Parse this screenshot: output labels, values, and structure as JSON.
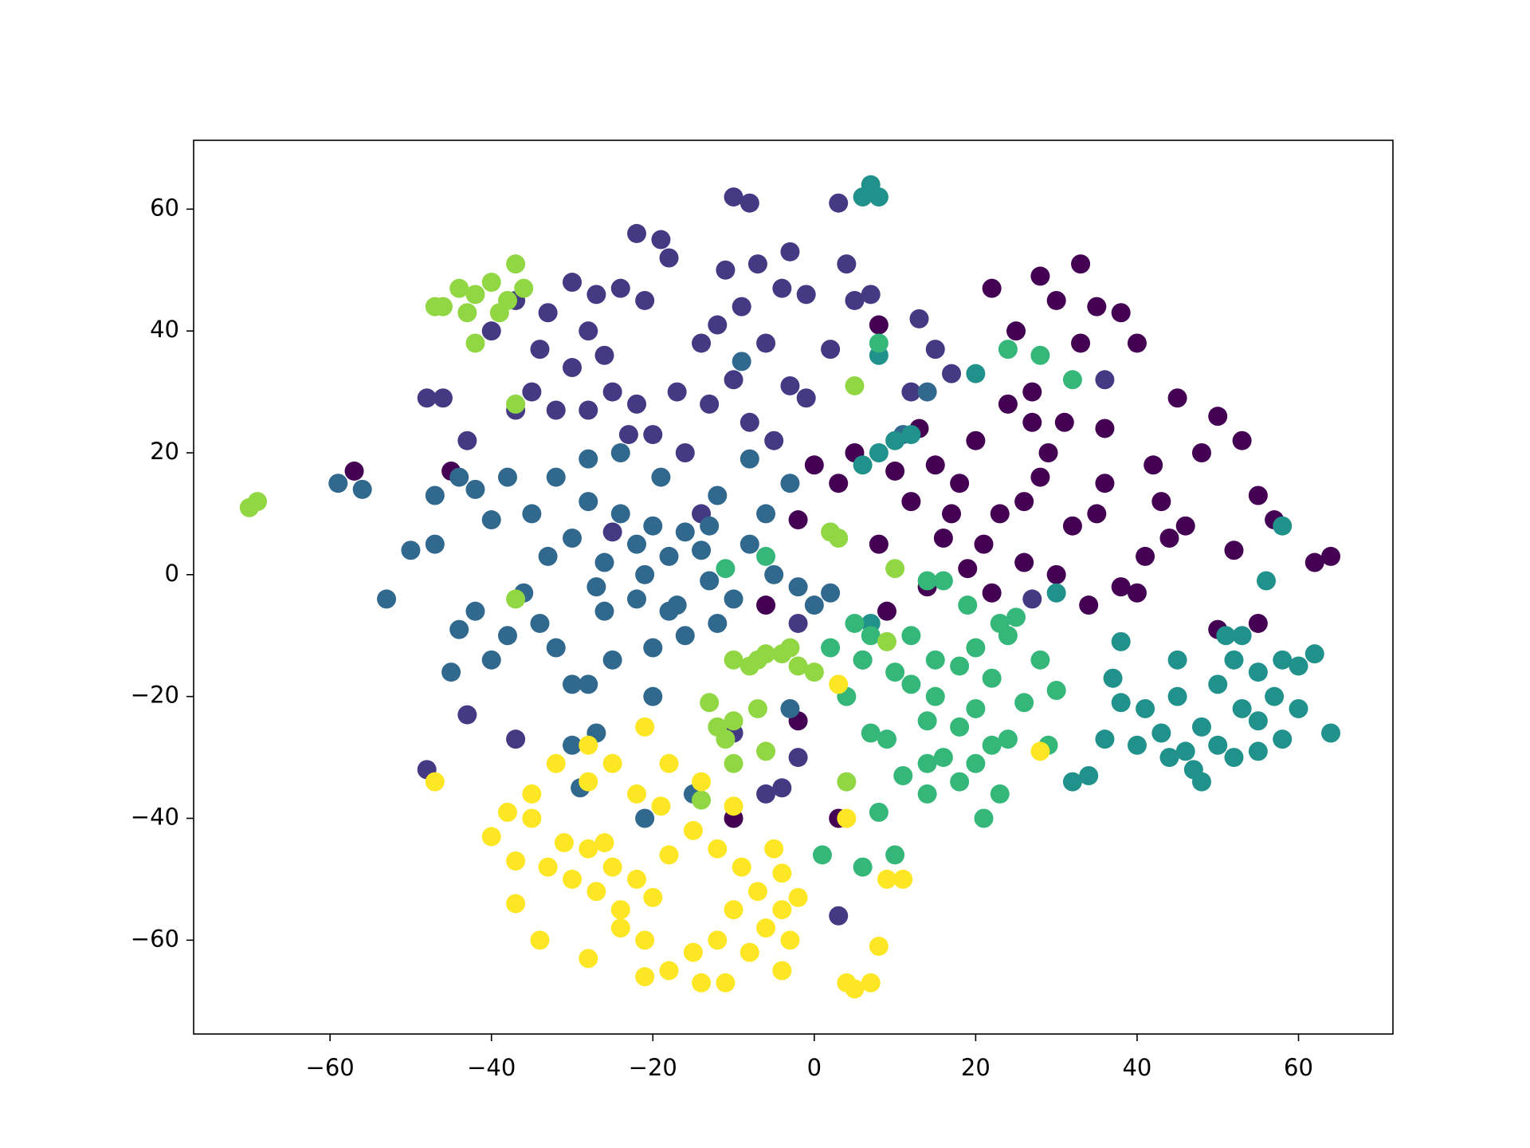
{
  "chart_data": {
    "type": "scatter",
    "xlim": [
      -76.9,
      71.7
    ],
    "ylim": [
      -75.4,
      71.3
    ],
    "xticks": [
      {
        "value": -60,
        "label": "−60"
      },
      {
        "value": -40,
        "label": "−40"
      },
      {
        "value": -20,
        "label": "−20"
      },
      0,
      20,
      40,
      60
    ],
    "yticks": [
      {
        "value": -60,
        "label": "−60"
      },
      {
        "value": -40,
        "label": "−40"
      },
      {
        "value": -20,
        "label": "−20"
      },
      0,
      20,
      40,
      60
    ],
    "series": [
      {
        "color": "#440154",
        "x": [
          22,
          25,
          28,
          30,
          33,
          35,
          38,
          40,
          27,
          31,
          29,
          24,
          20,
          18,
          15,
          13,
          17,
          21,
          26,
          32,
          36,
          42,
          45,
          48,
          50,
          53,
          55,
          57,
          44,
          41,
          38,
          34,
          30,
          26,
          22,
          19,
          16,
          12,
          10,
          8,
          5,
          3,
          0,
          -2,
          9,
          14,
          23,
          28,
          36,
          46,
          52,
          62,
          64,
          50,
          55,
          40,
          -57,
          -45,
          -6,
          -2,
          -10,
          3,
          8,
          33,
          27,
          35,
          43
        ],
        "values": [
          47,
          40,
          49,
          45,
          51,
          44,
          43,
          38,
          30,
          25,
          20,
          28,
          22,
          15,
          18,
          24,
          10,
          5,
          12,
          8,
          15,
          18,
          29,
          20,
          26,
          22,
          13,
          9,
          6,
          3,
          -2,
          -5,
          0,
          2,
          -3,
          1,
          6,
          12,
          17,
          5,
          20,
          15,
          18,
          9,
          -6,
          -2,
          10,
          16,
          24,
          8,
          4,
          2,
          3,
          -9,
          -8,
          -3,
          17,
          17,
          -5,
          -24,
          -40,
          -40,
          41,
          38,
          25,
          10,
          12
        ]
      },
      {
        "color": "#443983",
        "x": [
          -22,
          -19,
          -18,
          -24,
          -21,
          -27,
          -30,
          -28,
          -33,
          -37,
          -34,
          -30,
          -35,
          -32,
          -28,
          -25,
          -22,
          -20,
          -17,
          -14,
          -13,
          -10,
          -12,
          -9,
          -7,
          -4,
          -3,
          -1,
          -6,
          -3,
          -8,
          -5,
          -1,
          2,
          4,
          5,
          -10,
          -8,
          3,
          13,
          15,
          17,
          12,
          -46,
          -48,
          -37,
          -11,
          -16,
          -23,
          -26,
          -40,
          -43,
          -48,
          -37,
          -43,
          -10,
          -4,
          -2,
          -6,
          3,
          -2,
          27,
          36,
          -25,
          -14,
          7
        ],
        "values": [
          56,
          55,
          52,
          47,
          45,
          46,
          48,
          40,
          43,
          45,
          37,
          34,
          30,
          27,
          27,
          30,
          28,
          23,
          30,
          38,
          28,
          32,
          41,
          44,
          51,
          47,
          53,
          46,
          38,
          31,
          25,
          22,
          29,
          37,
          51,
          45,
          62,
          61,
          61,
          42,
          37,
          33,
          30,
          29,
          29,
          27,
          50,
          20,
          23,
          36,
          40,
          22,
          -32,
          -27,
          -23,
          -26,
          -35,
          -30,
          -36,
          -56,
          -8,
          -4,
          32,
          7,
          10,
          46
        ]
      },
      {
        "color": "#31688e",
        "x": [
          -22,
          -20,
          -18,
          -24,
          -26,
          -16,
          -21,
          -14,
          -28,
          -30,
          -33,
          -35,
          -38,
          -40,
          -42,
          -36,
          -34,
          -38,
          -42,
          -44,
          -47,
          -50,
          -53,
          -59,
          -56,
          -47,
          -45,
          -40,
          -32,
          -30,
          -28,
          -25,
          -20,
          -20,
          -16,
          -12,
          -10,
          -13,
          -8,
          -5,
          -2,
          0,
          2,
          -3,
          -8,
          -12,
          -19,
          -24,
          -28,
          -22,
          -26,
          -18,
          -30,
          -27,
          -29,
          -15,
          -21,
          -13,
          -6,
          -44,
          -32,
          -27,
          11,
          14,
          -3,
          6,
          -9,
          -17
        ],
        "values": [
          5,
          8,
          3,
          10,
          2,
          7,
          0,
          4,
          12,
          6,
          3,
          10,
          16,
          9,
          14,
          -3,
          -8,
          -10,
          -6,
          -9,
          5,
          4,
          -4,
          15,
          14,
          13,
          -16,
          -14,
          -12,
          -18,
          -18,
          -14,
          -20,
          -12,
          -10,
          -8,
          -4,
          -1,
          5,
          0,
          -2,
          -5,
          -3,
          15,
          19,
          13,
          16,
          20,
          19,
          -4,
          -6,
          -6,
          -28,
          -26,
          -35,
          -36,
          -40,
          8,
          10,
          16,
          16,
          -2,
          23,
          30,
          -22,
          -14,
          35,
          -5
        ]
      },
      {
        "color": "#21918c",
        "x": [
          7,
          8,
          6,
          45,
          48,
          50,
          52,
          55,
          58,
          60,
          62,
          57,
          53,
          50,
          47,
          44,
          41,
          38,
          36,
          40,
          48,
          52,
          55,
          58,
          60,
          64,
          55,
          51,
          45,
          38,
          37,
          32,
          34,
          46,
          43,
          53,
          58,
          56,
          8,
          10,
          12,
          6,
          8,
          30,
          20,
          7
        ],
        "values": [
          64,
          62,
          62,
          -20,
          -25,
          -18,
          -14,
          -16,
          -14,
          -15,
          -13,
          -20,
          -22,
          -28,
          -32,
          -30,
          -22,
          -21,
          -27,
          -28,
          -34,
          -30,
          -29,
          -27,
          -22,
          -26,
          -24,
          -10,
          -14,
          -11,
          -17,
          -34,
          -33,
          -29,
          -26,
          -10,
          8,
          -1,
          20,
          22,
          23,
          18,
          36,
          -3,
          33,
          -8
        ]
      },
      {
        "color": "#35b779",
        "x": [
          18,
          15,
          20,
          22,
          16,
          14,
          12,
          10,
          9,
          11,
          14,
          18,
          20,
          24,
          26,
          22,
          18,
          15,
          20,
          24,
          28,
          30,
          29,
          23,
          21,
          16,
          14,
          12,
          7,
          5,
          6,
          7,
          8,
          10,
          6,
          1,
          2,
          19,
          23,
          25,
          24,
          28,
          32,
          -6,
          -11,
          8,
          14,
          4
        ],
        "values": [
          -25,
          -20,
          -22,
          -28,
          -30,
          -24,
          -18,
          -16,
          -27,
          -33,
          -36,
          -34,
          -31,
          -27,
          -21,
          -17,
          -15,
          -14,
          -12,
          -10,
          -14,
          -19,
          -28,
          -36,
          -40,
          -1,
          -1,
          -10,
          -10,
          -8,
          -14,
          -26,
          -39,
          -46,
          -48,
          -46,
          -12,
          -5,
          -8,
          -7,
          37,
          36,
          32,
          3,
          1,
          38,
          -31,
          -20
        ]
      },
      {
        "color": "#90d743",
        "x": [
          -70,
          -69,
          -46,
          -44,
          -42,
          -40,
          -38,
          -36,
          -39,
          -43,
          -47,
          -37,
          -42,
          -37,
          -37,
          -10,
          -8,
          -6,
          -4,
          -3,
          -13,
          -12,
          -10,
          -7,
          -11,
          -6,
          -10,
          -14,
          2,
          3,
          5,
          10,
          9,
          0,
          4,
          -7,
          -2
        ],
        "values": [
          11,
          12,
          44,
          47,
          46,
          48,
          45,
          47,
          43,
          43,
          44,
          51,
          38,
          28,
          -4,
          -14,
          -15,
          -13,
          -13,
          -12,
          -21,
          -25,
          -24,
          -22,
          -27,
          -29,
          -31,
          -37,
          7,
          6,
          31,
          1,
          -11,
          -16,
          -34,
          -14,
          -15
        ]
      },
      {
        "color": "#fde725",
        "x": [
          -22,
          -25,
          -20,
          -18,
          -24,
          -27,
          -28,
          -30,
          -31,
          -33,
          -35,
          -35,
          -38,
          -40,
          -37,
          -37,
          -34,
          -28,
          -24,
          -21,
          -21,
          -18,
          -15,
          -14,
          -12,
          -10,
          -11,
          -8,
          -6,
          -4,
          -3,
          -4,
          -2,
          -4,
          -5,
          -7,
          -9,
          -12,
          -15,
          -19,
          -22,
          -25,
          -28,
          -28,
          -32,
          -21,
          -18,
          -14,
          -10,
          4,
          3,
          5,
          4,
          7,
          8,
          9,
          11,
          28,
          -47,
          -26
        ],
        "values": [
          -50,
          -48,
          -53,
          -46,
          -55,
          -52,
          -45,
          -50,
          -44,
          -48,
          -36,
          -40,
          -39,
          -43,
          -47,
          -54,
          -60,
          -63,
          -58,
          -60,
          -66,
          -65,
          -62,
          -67,
          -60,
          -55,
          -67,
          -62,
          -58,
          -55,
          -60,
          -65,
          -53,
          -49,
          -45,
          -52,
          -48,
          -45,
          -42,
          -38,
          -36,
          -31,
          -28,
          -34,
          -31,
          -25,
          -31,
          -34,
          -38,
          -40,
          -18,
          -68,
          -67,
          -67,
          -61,
          -50,
          -50,
          -29,
          -34,
          -44
        ]
      }
    ]
  }
}
